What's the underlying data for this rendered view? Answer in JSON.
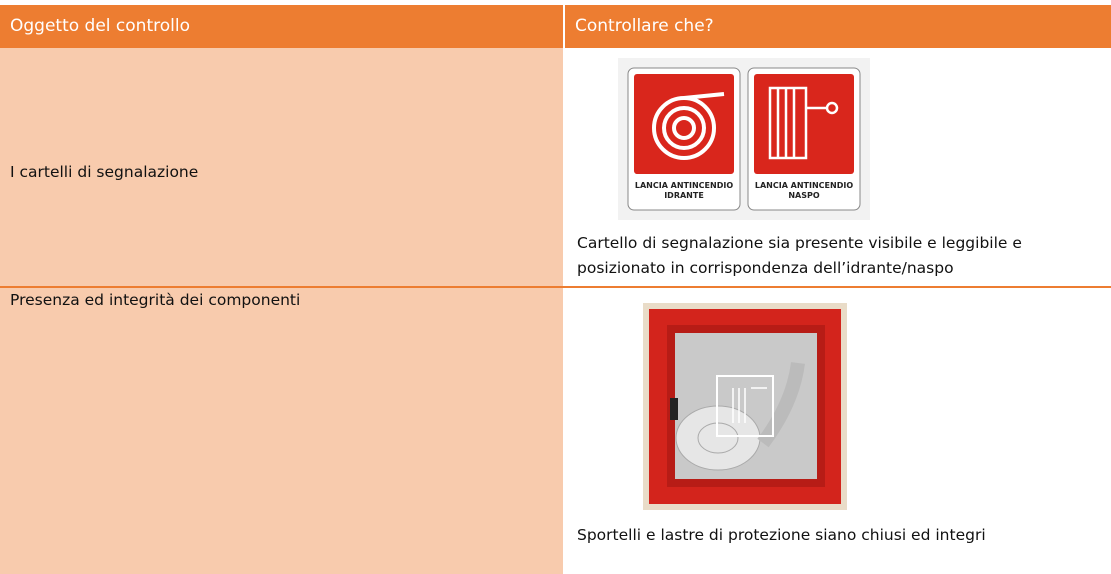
{
  "table": {
    "header": [
      "Oggetto del controllo",
      "Controllare che?"
    ],
    "rows": [
      {
        "object": "I cartelli di segnalazione",
        "signs": [
          [
            "LANCIA ANTINCENDIO",
            "IDRANTE"
          ],
          [
            "LANCIA ANTINCENDIO",
            "NASPO"
          ]
        ],
        "check": "Cartello di segnalazione sia presente visibile e leggibile e posizionato in corrispondenza dell’idrante/naspo"
      },
      {
        "object": "Presenza ed integrità dei componenti",
        "check": "Sportelli e lastre di protezione siano chiusi ed integri"
      }
    ]
  }
}
